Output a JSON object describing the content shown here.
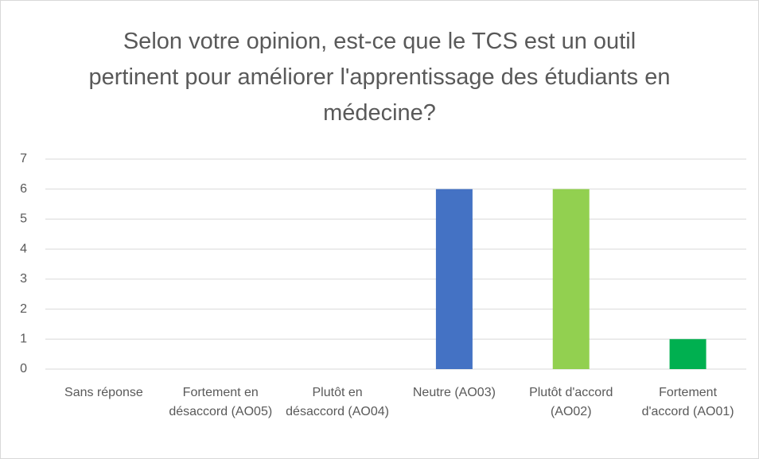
{
  "chart_data": {
    "type": "bar",
    "title": "Selon votre opinion, est-ce que le TCS est un outil pertinent pour améliorer l'apprentissage des étudiants en médecine?",
    "categories": [
      "Sans réponse",
      "Fortement en désaccord (AO05)",
      "Plutôt en désaccord (AO04)",
      "Neutre (AO03)",
      "Plutôt d'accord (AO02)",
      "Fortement d'accord (AO01)"
    ],
    "values": [
      0,
      0,
      0,
      6,
      6,
      1
    ],
    "colors": [
      "#4472c4",
      "#4472c4",
      "#4472c4",
      "#4472c4",
      "#92d050",
      "#00b050"
    ],
    "ylim": [
      0,
      7
    ],
    "yticks": [
      0,
      1,
      2,
      3,
      4,
      5,
      6,
      7
    ],
    "grid": true
  }
}
